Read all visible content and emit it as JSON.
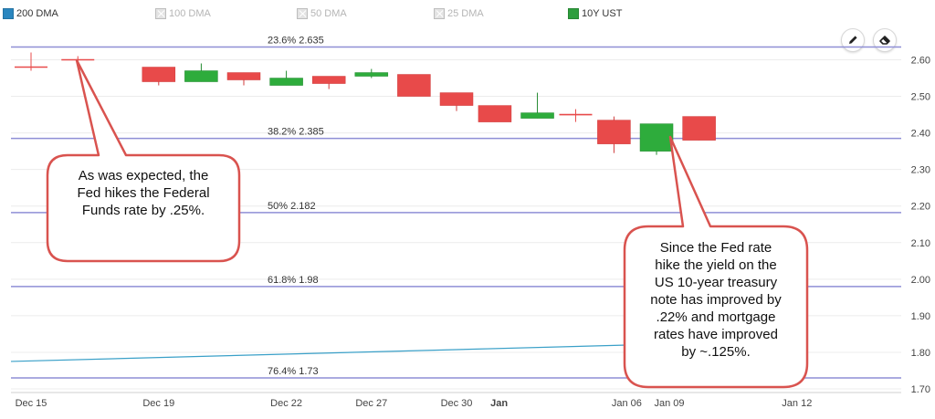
{
  "legend": [
    {
      "label": "200 DMA",
      "color": "#2a86bf",
      "enabled": true
    },
    {
      "label": "100 DMA",
      "color": "#9e9e9e",
      "enabled": false
    },
    {
      "label": "50 DMA",
      "color": "#9e9e9e",
      "enabled": false
    },
    {
      "label": "25 DMA",
      "color": "#9e9e9e",
      "enabled": false
    },
    {
      "label": "10Y UST",
      "color": "#2e9e3e",
      "enabled": true
    }
  ],
  "toolbar": {
    "draw_icon": "pencil-icon",
    "erase_icon": "eraser-icon"
  },
  "callouts": {
    "left": [
      "As was expected, the",
      "Fed hikes the Federal",
      "Funds rate by .25%."
    ],
    "right": [
      "Since the Fed rate",
      "hike the yield on the",
      "US 10-year treasury",
      "note has improved by",
      ".22% and mortgage",
      "rates have improved",
      "by ~.125%."
    ]
  },
  "chart_data": {
    "type": "candlestick",
    "ylim": [
      1.7,
      2.65
    ],
    "y_ticks": [
      "1.70",
      "1.80",
      "1.90",
      "2.00",
      "2.10",
      "2.20",
      "2.30",
      "2.40",
      "2.50",
      "2.60"
    ],
    "x_ticks": [
      "Dec 15",
      "Dec 19",
      "Dec 22",
      "Dec 27",
      "Dec 30",
      "Jan",
      "Jan 06",
      "Jan 09",
      "Jan 12"
    ],
    "fib_levels": [
      {
        "label": "23.6% 2.635",
        "value": 2.635
      },
      {
        "label": "38.2% 2.385",
        "value": 2.385
      },
      {
        "label": "50% 2.182",
        "value": 2.182
      },
      {
        "label": "61.8% 1.98",
        "value": 1.98
      },
      {
        "label": "76.4% 1.73",
        "value": 1.73
      }
    ],
    "candles": [
      {
        "date": "Dec 15",
        "open": 2.58,
        "close": 2.58,
        "high": 2.62,
        "low": 2.57
      },
      {
        "date": "Dec 16",
        "open": 2.6,
        "close": 2.6,
        "high": 2.61,
        "low": 2.58
      },
      {
        "date": "Dec 19",
        "open": 2.58,
        "close": 2.54,
        "high": 2.58,
        "low": 2.53
      },
      {
        "date": "Dec 20",
        "open": 2.54,
        "close": 2.57,
        "high": 2.59,
        "low": 2.54
      },
      {
        "date": "Dec 21",
        "open": 2.565,
        "close": 2.545,
        "high": 2.565,
        "low": 2.53
      },
      {
        "date": "Dec 22",
        "open": 2.53,
        "close": 2.55,
        "high": 2.57,
        "low": 2.53
      },
      {
        "date": "Dec 23",
        "open": 2.555,
        "close": 2.535,
        "high": 2.555,
        "low": 2.52
      },
      {
        "date": "Dec 27",
        "open": 2.555,
        "close": 2.565,
        "high": 2.575,
        "low": 2.55
      },
      {
        "date": "Dec 28",
        "open": 2.56,
        "close": 2.5,
        "high": 2.56,
        "low": 2.5
      },
      {
        "date": "Dec 29",
        "open": 2.51,
        "close": 2.475,
        "high": 2.51,
        "low": 2.46
      },
      {
        "date": "Dec 30",
        "open": 2.475,
        "close": 2.43,
        "high": 2.475,
        "low": 2.43
      },
      {
        "date": "Jan 03",
        "open": 2.44,
        "close": 2.455,
        "high": 2.51,
        "low": 2.44
      },
      {
        "date": "Jan 04",
        "open": 2.45,
        "close": 2.45,
        "high": 2.465,
        "low": 2.43
      },
      {
        "date": "Jan 05",
        "open": 2.435,
        "close": 2.37,
        "high": 2.445,
        "low": 2.345
      },
      {
        "date": "Jan 06",
        "open": 2.35,
        "close": 2.425,
        "high": 2.425,
        "low": 2.34
      },
      {
        "date": "Jan 09",
        "open": 2.445,
        "close": 2.38,
        "high": 2.445,
        "low": 2.38
      }
    ],
    "ma_200": {
      "name": "200 DMA",
      "start": 1.775,
      "end": 1.822
    }
  }
}
